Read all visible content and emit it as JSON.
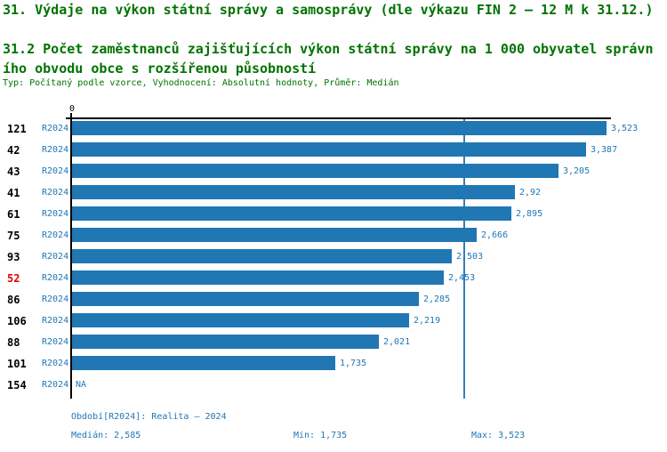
{
  "header": {
    "title": "31. Výdaje na výkon státní správy a samosprávy (dle výkazu FIN 2 – 12 M k 31.12.)",
    "subtitle": "31.2 Počet zaměstnanců zajišťujících výkon státní správy na 1 000 obyvatel správního obvodu obce s rozšířenou působností",
    "meta": "Typ: Počítaný podle vzorce, Vyhodnocení: Absolutní hodnoty, Průměr: Medián"
  },
  "colors": {
    "heading_green": "#007300",
    "text_blue": "#1f77b4",
    "bar_blue": "#2077b4",
    "highlight_red": "#e00000",
    "median_line_blue": "#3380b5",
    "axis_black": "#000000"
  },
  "chart_data": {
    "type": "bar",
    "orientation": "horizontal",
    "title": "31.2 Počet zaměstnanců zajišťujících výkon státní správy na 1 000 obyvatel správního obvodu obce s rozšířenou působností",
    "xlabel": "",
    "ylabel": "",
    "x_axis": {
      "origin_label": "0",
      "min": 0,
      "max": 3.523
    },
    "grid": false,
    "legend": "none",
    "median": 2.585,
    "min": 1.735,
    "max": 3.523,
    "categories": [
      "121",
      "42",
      "43",
      "41",
      "61",
      "75",
      "93",
      "52",
      "86",
      "106",
      "88",
      "101",
      "154"
    ],
    "series_period": "R2024",
    "values": [
      3.523,
      3.387,
      3.205,
      2.92,
      2.895,
      2.666,
      2.503,
      2.453,
      2.285,
      2.219,
      2.021,
      1.735,
      null
    ],
    "rows": [
      {
        "category": "121",
        "period": "R2024",
        "value": 3.523,
        "value_label": "3,523",
        "highlight": false
      },
      {
        "category": "42",
        "period": "R2024",
        "value": 3.387,
        "value_label": "3,387",
        "highlight": false
      },
      {
        "category": "43",
        "period": "R2024",
        "value": 3.205,
        "value_label": "3,205",
        "highlight": false
      },
      {
        "category": "41",
        "period": "R2024",
        "value": 2.92,
        "value_label": "2,92",
        "highlight": false
      },
      {
        "category": "61",
        "period": "R2024",
        "value": 2.895,
        "value_label": "2,895",
        "highlight": false
      },
      {
        "category": "75",
        "period": "R2024",
        "value": 2.666,
        "value_label": "2,666",
        "highlight": false
      },
      {
        "category": "93",
        "period": "R2024",
        "value": 2.503,
        "value_label": "2,503",
        "highlight": false
      },
      {
        "category": "52",
        "period": "R2024",
        "value": 2.453,
        "value_label": "2,453",
        "highlight": true
      },
      {
        "category": "86",
        "period": "R2024",
        "value": 2.285,
        "value_label": "2,285",
        "highlight": false
      },
      {
        "category": "106",
        "period": "R2024",
        "value": 2.219,
        "value_label": "2,219",
        "highlight": false
      },
      {
        "category": "88",
        "period": "R2024",
        "value": 2.021,
        "value_label": "2,021",
        "highlight": false
      },
      {
        "category": "101",
        "period": "R2024",
        "value": 1.735,
        "value_label": "1,735",
        "highlight": false
      },
      {
        "category": "154",
        "period": "R2024",
        "value": null,
        "value_label": "NA",
        "highlight": false
      }
    ]
  },
  "footer": {
    "period_line": "Období[R2024]: Realita – 2024",
    "median_label": "Medián: 2,585",
    "min_label": "Min: 1,735",
    "max_label": "Max: 3,523"
  }
}
